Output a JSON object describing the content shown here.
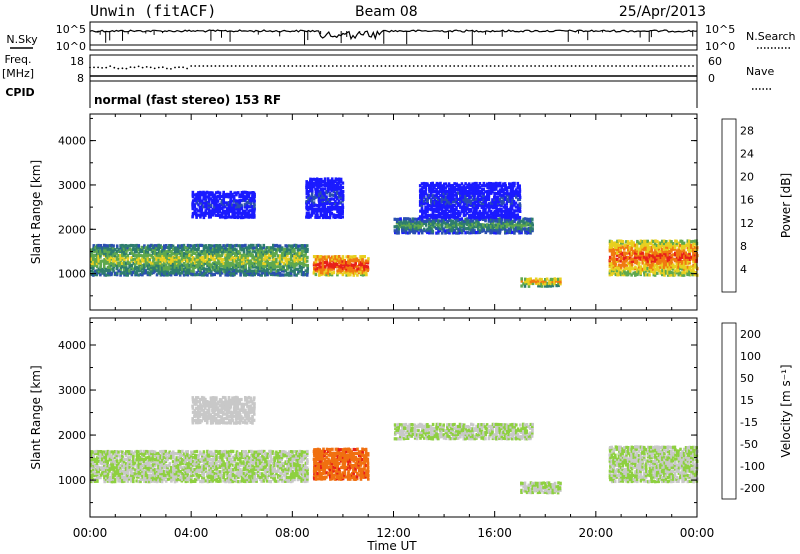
{
  "header": {
    "title": "Unwin (fitACF)",
    "beam": "Beam 08",
    "date": "25/Apr/2013"
  },
  "panels": {
    "nsky_label": "N.Sky",
    "nsearch_label": "N.Search",
    "freq_label_top": "Freq.",
    "freq_label_unit": "[MHz]",
    "nave_label": "Nave",
    "cpid_label": "CPID",
    "cpid_text": "normal (fast stereo) 153 RF",
    "noise_ticks_left": [
      "10^5",
      "10^0"
    ],
    "noise_ticks_right": [
      "10^5",
      "10^0"
    ],
    "freq_ticks_left": [
      "18",
      "8"
    ],
    "nave_ticks_right": [
      "60",
      "0"
    ]
  },
  "chart_data": [
    {
      "type": "heatmap",
      "title": "",
      "xlabel": "Time UT",
      "ylabel": "Slant Range [km]",
      "xticks": [
        "00:00",
        "04:00",
        "08:00",
        "12:00",
        "16:00",
        "20:00",
        "00:00"
      ],
      "xlim_hours": [
        0,
        24
      ],
      "ylim_km": [
        180,
        4600
      ],
      "yticks": [
        "1000",
        "2000",
        "3000",
        "4000"
      ],
      "colorbar": {
        "label": "Power [dB]",
        "ticks": [
          "4",
          "8",
          "12",
          "16",
          "20",
          "24",
          "28"
        ],
        "range": [
          0,
          30
        ],
        "colors": [
          "#1a1aff",
          "#2a4fb0",
          "#2e7d6e",
          "#5fa84e",
          "#e8d020",
          "#f07a10",
          "#e8201a"
        ]
      },
      "regions": [
        {
          "t0": 0.0,
          "t1": 8.6,
          "r0": 1000,
          "r1": 1700,
          "value": 18,
          "desc_band": "main"
        },
        {
          "t0": 8.8,
          "t1": 11.0,
          "r0": 1000,
          "r1": 1450,
          "value": 28
        },
        {
          "t0": 12.0,
          "t1": 17.5,
          "r0": 1950,
          "r1": 2300,
          "value": 14
        },
        {
          "t0": 13.0,
          "t1": 17.0,
          "r0": 2300,
          "r1": 3100,
          "value": 5
        },
        {
          "t0": 17.0,
          "t1": 18.6,
          "r0": 750,
          "r1": 950,
          "value": 22
        },
        {
          "t0": 20.5,
          "t1": 24.0,
          "r0": 1000,
          "r1": 1800,
          "value": 26
        },
        {
          "t0": 4.0,
          "t1": 6.5,
          "r0": 2300,
          "r1": 2900,
          "value": 5
        },
        {
          "t0": 8.5,
          "t1": 10.0,
          "r0": 2300,
          "r1": 3200,
          "value": 5
        }
      ]
    },
    {
      "type": "heatmap",
      "title": "",
      "xlabel": "Time UT",
      "ylabel": "Slant Range [km]",
      "xticks": [
        "00:00",
        "04:00",
        "08:00",
        "12:00",
        "16:00",
        "20:00",
        "00:00"
      ],
      "xlim_hours": [
        0,
        24
      ],
      "ylim_km": [
        180,
        4600
      ],
      "yticks": [
        "1000",
        "2000",
        "3000",
        "4000"
      ],
      "colorbar": {
        "label": "Velocity [m s⁻¹]",
        "ticks": [
          "200",
          "100",
          "50",
          "15",
          "-15",
          "-50",
          "-100",
          "-200"
        ],
        "range": [
          -250,
          250
        ],
        "colors": [
          "#1a2fb0",
          "#2e6e4e",
          "#50a040",
          "#8ed040",
          "#c8c8c8",
          "#f0b030",
          "#f07010",
          "#e8201a"
        ]
      },
      "regions": [
        {
          "t0": 0.0,
          "t1": 8.6,
          "r0": 1000,
          "r1": 1700,
          "value": 0
        },
        {
          "t0": 8.8,
          "t1": 11.0,
          "r0": 1050,
          "r1": 1750,
          "value": -180
        },
        {
          "t0": 12.0,
          "t1": 17.5,
          "r0": 1950,
          "r1": 2300,
          "value": 0
        },
        {
          "t0": 17.0,
          "t1": 18.6,
          "r0": 750,
          "r1": 1000,
          "value": 0
        },
        {
          "t0": 20.5,
          "t1": 24.0,
          "r0": 1000,
          "r1": 1800,
          "value": 0
        },
        {
          "t0": 4.0,
          "t1": 6.5,
          "r0": 2300,
          "r1": 2900,
          "value": -30
        }
      ]
    }
  ]
}
